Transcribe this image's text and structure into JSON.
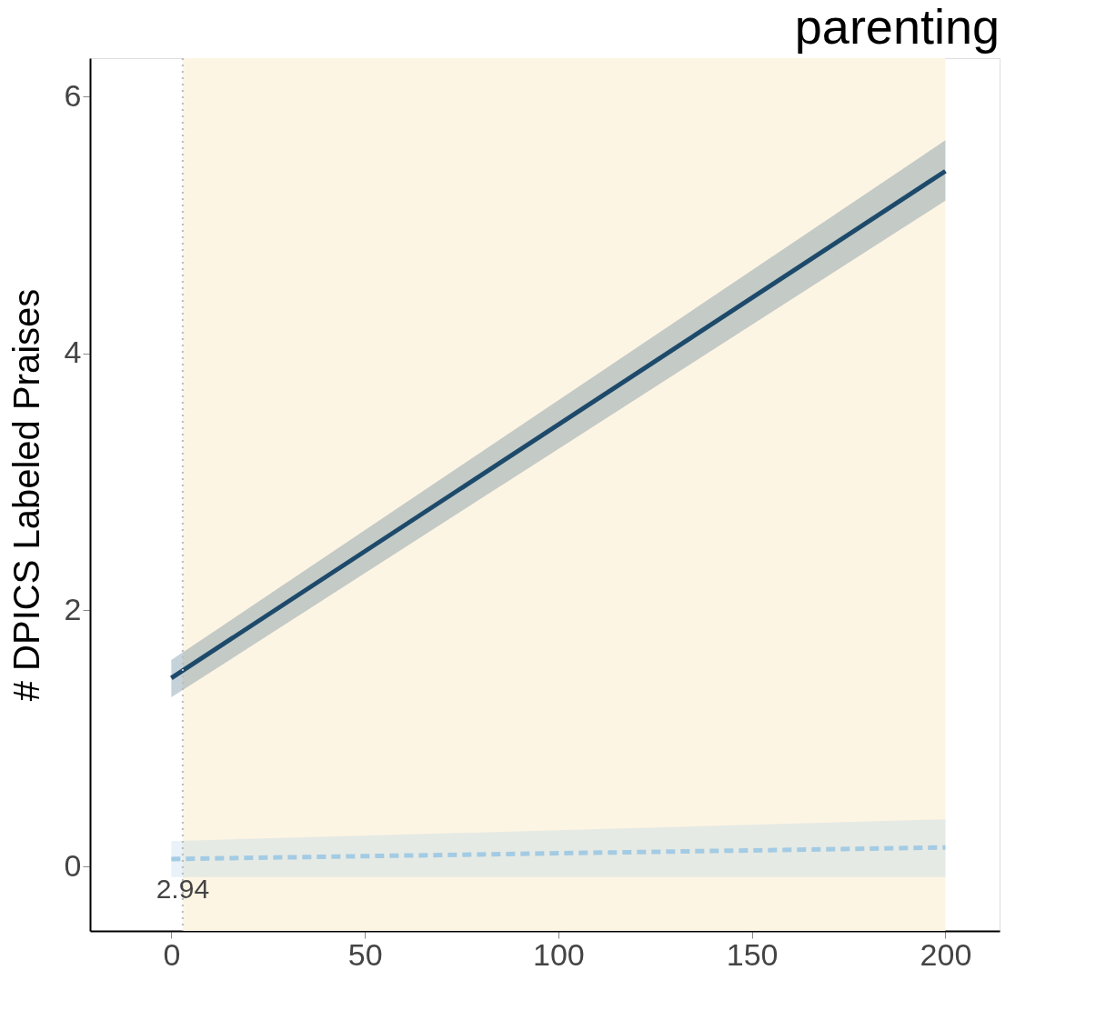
{
  "chart_data": {
    "type": "line",
    "title": "parenting",
    "ylabel": "# DPICS Labeled Praises",
    "x": [
      0,
      200
    ],
    "xlim": [
      -21,
      214
    ],
    "xticks": [
      0,
      50,
      100,
      150,
      200
    ],
    "ylim": [
      -0.5,
      6.3
    ],
    "yticks": [
      0,
      2,
      4,
      6
    ],
    "series": [
      {
        "color": "#1d4a6b",
        "values": [
          1.47,
          5.42
        ],
        "lower": [
          1.32,
          5.19
        ],
        "upper": [
          1.61,
          5.66
        ],
        "line_style": "solid"
      },
      {
        "color": "#a3cbe4",
        "values": [
          0.06,
          0.15
        ],
        "lower": [
          -0.08,
          -0.08
        ],
        "upper": [
          0.2,
          0.37
        ],
        "line_style": "dashed"
      }
    ],
    "bands": [
      {
        "axis": "x",
        "from": 2.94,
        "to": 200,
        "color": "#fdf5e4"
      }
    ],
    "ref_lines": [
      {
        "axis": "x",
        "value": 2.94,
        "label": "2.94",
        "line_style": "dotted",
        "color": "#bbbbbb"
      }
    ],
    "grid": false,
    "marker": "none"
  }
}
